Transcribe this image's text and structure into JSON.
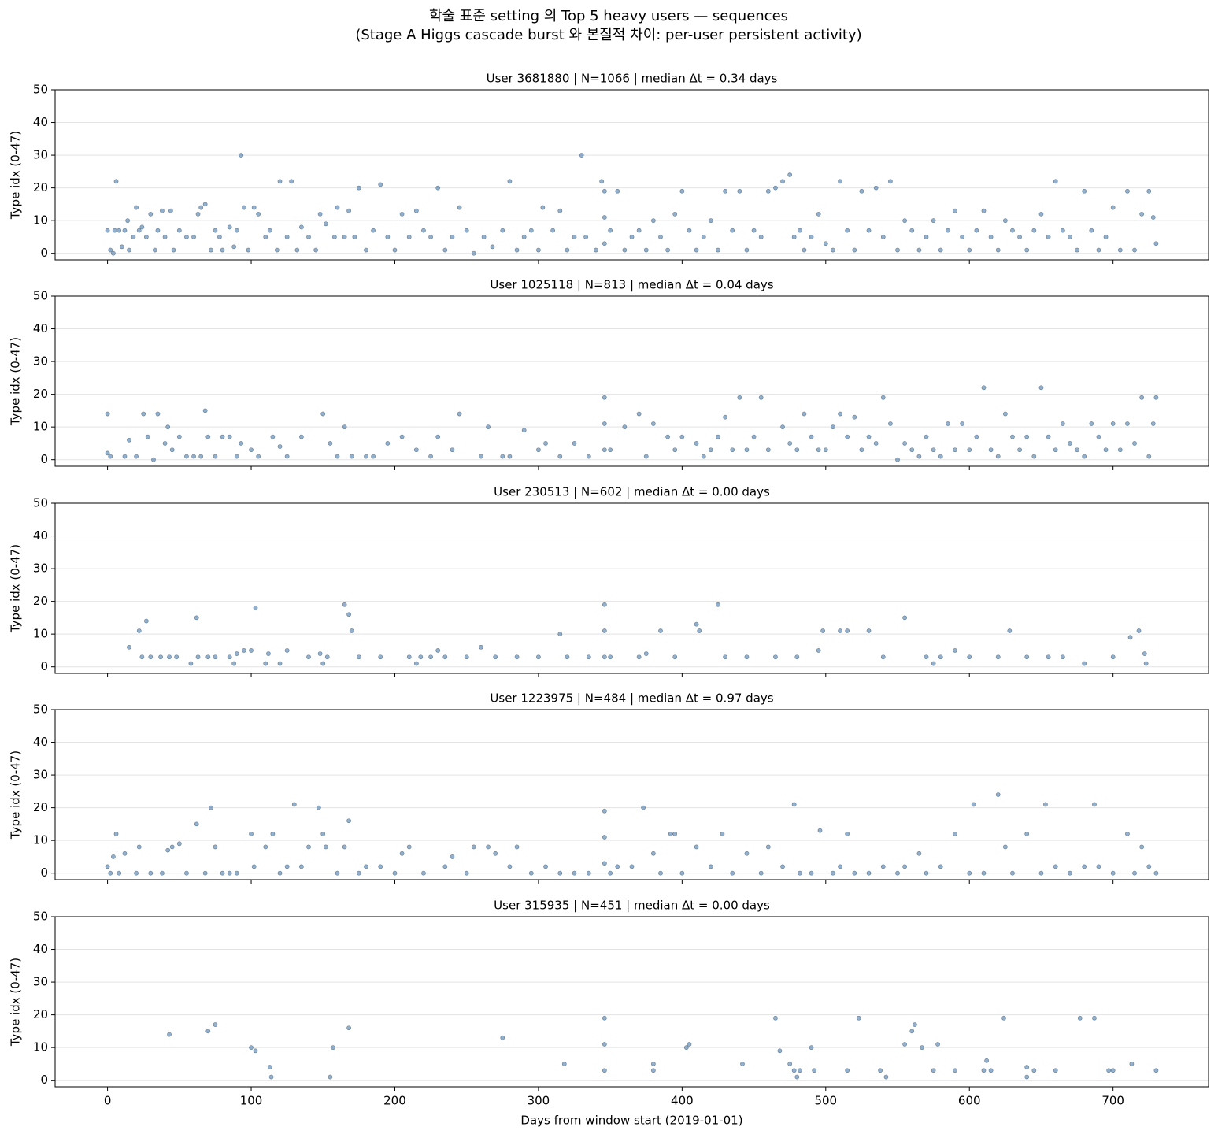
{
  "figure": {
    "title": "학술 표준 setting 의 Top 5 heavy users — sequences",
    "subtitle": "(Stage A Higgs cascade burst 와 본질적 차이: per-user persistent activity)"
  },
  "chart_data": [
    {
      "type": "scatter",
      "title": "User 3681880 | N=1066 | median Δt = 0.34 days",
      "ylabel": "Type idx (0-47)",
      "color": "#4a7aa8",
      "grid": true,
      "xlim": [
        -36.5,
        766.5
      ],
      "ylim": [
        -2,
        50
      ],
      "yticks": [
        0,
        10,
        20,
        30,
        40,
        50
      ],
      "x": [
        0,
        2,
        4,
        5,
        6,
        8,
        10,
        12,
        14,
        15,
        18,
        20,
        22,
        24,
        27,
        30,
        33,
        35,
        38,
        40,
        44,
        46,
        50,
        55,
        60,
        63,
        65,
        68,
        72,
        75,
        78,
        80,
        85,
        88,
        90,
        93,
        95,
        98,
        102,
        105,
        110,
        113,
        118,
        120,
        125,
        128,
        132,
        135,
        140,
        145,
        148,
        152,
        158,
        160,
        165,
        168,
        172,
        175,
        180,
        185,
        190,
        195,
        200,
        205,
        210,
        215,
        220,
        225,
        230,
        235,
        240,
        245,
        250,
        255,
        262,
        268,
        275,
        280,
        285,
        290,
        295,
        300,
        303,
        310,
        315,
        320,
        325,
        330,
        333,
        340,
        344,
        346,
        346,
        346,
        350,
        355,
        360,
        365,
        370,
        375,
        380,
        385,
        390,
        395,
        400,
        405,
        410,
        415,
        420,
        425,
        430,
        435,
        440,
        445,
        450,
        455,
        460,
        465,
        470,
        475,
        478,
        482,
        485,
        490,
        495,
        500,
        505,
        510,
        515,
        520,
        525,
        530,
        535,
        540,
        545,
        550,
        555,
        560,
        565,
        570,
        575,
        580,
        585,
        590,
        595,
        600,
        605,
        610,
        615,
        620,
        625,
        630,
        635,
        640,
        645,
        650,
        655,
        660,
        665,
        670,
        675,
        680,
        685,
        690,
        695,
        700,
        705,
        710,
        715,
        720,
        725,
        728,
        730
      ],
      "values": [
        7,
        1,
        0,
        7,
        22,
        7,
        2,
        7,
        10,
        1,
        5,
        14,
        7,
        8,
        5,
        12,
        1,
        7,
        13,
        5,
        13,
        1,
        7,
        5,
        5,
        12,
        14,
        15,
        1,
        7,
        5,
        1,
        8,
        2,
        7,
        30,
        14,
        1,
        14,
        12,
        5,
        7,
        1,
        22,
        5,
        22,
        1,
        8,
        5,
        1,
        12,
        9,
        5,
        14,
        5,
        13,
        5,
        20,
        1,
        7,
        21,
        5,
        1,
        12,
        5,
        13,
        7,
        5,
        20,
        1,
        5,
        14,
        7,
        0,
        5,
        2,
        7,
        22,
        1,
        5,
        7,
        1,
        14,
        7,
        13,
        1,
        5,
        30,
        5,
        1,
        22,
        19,
        11,
        3,
        7,
        19,
        1,
        5,
        7,
        1,
        10,
        5,
        1,
        12,
        19,
        7,
        1,
        5,
        10,
        1,
        19,
        7,
        19,
        1,
        7,
        5,
        19,
        20,
        22,
        24,
        5,
        7,
        1,
        5,
        12,
        3,
        1,
        22,
        7,
        1,
        19,
        7,
        20,
        5,
        22,
        1,
        10,
        7,
        1,
        5,
        10,
        1,
        7,
        13,
        5,
        1,
        7,
        13,
        5,
        1,
        10,
        7,
        5,
        1,
        7,
        12,
        5,
        22,
        7,
        5,
        1,
        19,
        7,
        1,
        5,
        14,
        1,
        19,
        1,
        12,
        19,
        11,
        3
      ]
    },
    {
      "type": "scatter",
      "title": "User 1025118 | N=813 | median Δt = 0.04 days",
      "ylabel": "Type idx (0-47)",
      "color": "#4a7aa8",
      "grid": true,
      "xlim": [
        -36.5,
        766.5
      ],
      "ylim": [
        -2,
        50
      ],
      "yticks": [
        0,
        10,
        20,
        30,
        40,
        50
      ],
      "x": [
        0,
        0,
        2,
        12,
        15,
        20,
        25,
        28,
        32,
        35,
        40,
        42,
        45,
        50,
        55,
        60,
        65,
        68,
        70,
        75,
        80,
        85,
        90,
        93,
        100,
        105,
        115,
        120,
        125,
        135,
        150,
        155,
        160,
        165,
        170,
        180,
        185,
        195,
        205,
        215,
        225,
        230,
        240,
        245,
        260,
        265,
        275,
        280,
        290,
        300,
        305,
        315,
        325,
        335,
        346,
        346,
        346,
        350,
        360,
        370,
        375,
        380,
        390,
        395,
        400,
        410,
        415,
        420,
        425,
        430,
        435,
        440,
        445,
        450,
        455,
        460,
        470,
        475,
        480,
        485,
        490,
        495,
        500,
        505,
        510,
        515,
        520,
        525,
        530,
        535,
        540,
        545,
        550,
        555,
        560,
        565,
        570,
        575,
        580,
        585,
        590,
        595,
        600,
        605,
        610,
        615,
        620,
        625,
        630,
        635,
        640,
        645,
        650,
        655,
        660,
        665,
        670,
        675,
        680,
        685,
        690,
        695,
        700,
        705,
        710,
        715,
        720,
        725,
        728,
        730
      ],
      "values": [
        14,
        2,
        1,
        1,
        6,
        1,
        14,
        7,
        0,
        14,
        5,
        10,
        3,
        7,
        1,
        1,
        1,
        15,
        7,
        1,
        7,
        7,
        1,
        5,
        3,
        1,
        7,
        4,
        1,
        7,
        14,
        5,
        1,
        10,
        1,
        1,
        1,
        5,
        7,
        3,
        1,
        7,
        3,
        14,
        1,
        10,
        1,
        1,
        9,
        3,
        5,
        1,
        5,
        1,
        19,
        11,
        3,
        3,
        10,
        14,
        1,
        11,
        7,
        3,
        7,
        5,
        1,
        3,
        7,
        13,
        3,
        19,
        3,
        7,
        19,
        3,
        10,
        5,
        3,
        14,
        7,
        3,
        3,
        10,
        14,
        7,
        13,
        3,
        7,
        5,
        19,
        11,
        0,
        5,
        3,
        1,
        7,
        3,
        1,
        11,
        3,
        11,
        3,
        7,
        22,
        3,
        1,
        14,
        7,
        3,
        7,
        1,
        22,
        7,
        3,
        11,
        5,
        3,
        1,
        11,
        7,
        3,
        11,
        3,
        11,
        5,
        19,
        1,
        11,
        19
      ]
    },
    {
      "type": "scatter",
      "title": "User 230513 | N=602 | median Δt = 0.00 days",
      "ylabel": "Type idx (0-47)",
      "color": "#4a7aa8",
      "grid": true,
      "xlim": [
        -36.5,
        766.5
      ],
      "ylim": [
        -2,
        50
      ],
      "yticks": [
        0,
        10,
        20,
        30,
        40,
        50
      ],
      "x": [
        15,
        22,
        24,
        27,
        30,
        37,
        43,
        48,
        58,
        62,
        63,
        70,
        75,
        85,
        88,
        90,
        95,
        100,
        103,
        110,
        112,
        120,
        125,
        140,
        148,
        150,
        153,
        165,
        168,
        170,
        175,
        190,
        210,
        215,
        218,
        225,
        230,
        235,
        250,
        260,
        270,
        285,
        300,
        315,
        320,
        335,
        346,
        346,
        346,
        350,
        370,
        375,
        385,
        395,
        410,
        412,
        425,
        430,
        445,
        465,
        480,
        495,
        498,
        510,
        515,
        530,
        540,
        555,
        570,
        575,
        580,
        590,
        600,
        620,
        628,
        640,
        655,
        665,
        680,
        700,
        712,
        718,
        722,
        723
      ],
      "values": [
        6,
        11,
        3,
        14,
        3,
        3,
        3,
        3,
        1,
        15,
        3,
        3,
        3,
        3,
        1,
        4,
        5,
        5,
        18,
        1,
        4,
        1,
        5,
        3,
        4,
        1,
        3,
        19,
        16,
        11,
        3,
        3,
        3,
        1,
        3,
        3,
        5,
        3,
        3,
        6,
        3,
        3,
        3,
        10,
        3,
        3,
        19,
        11,
        3,
        3,
        3,
        4,
        11,
        3,
        13,
        11,
        19,
        3,
        3,
        3,
        3,
        5,
        11,
        11,
        11,
        11,
        3,
        15,
        3,
        1,
        3,
        5,
        3,
        3,
        11,
        3,
        3,
        3,
        1,
        3,
        9,
        11,
        4,
        1
      ]
    },
    {
      "type": "scatter",
      "title": "User 1223975 | N=484 | median Δt = 0.97 days",
      "ylabel": "Type idx (0-47)",
      "color": "#4a7aa8",
      "grid": true,
      "xlim": [
        -36.5,
        766.5
      ],
      "ylim": [
        -2,
        50
      ],
      "yticks": [
        0,
        10,
        20,
        30,
        40,
        50
      ],
      "x": [
        0,
        2,
        4,
        6,
        8,
        12,
        20,
        22,
        30,
        38,
        42,
        45,
        50,
        55,
        62,
        68,
        72,
        75,
        80,
        85,
        90,
        100,
        102,
        110,
        115,
        120,
        125,
        130,
        135,
        140,
        147,
        150,
        152,
        160,
        165,
        168,
        175,
        180,
        190,
        200,
        205,
        210,
        220,
        235,
        240,
        250,
        255,
        265,
        270,
        280,
        285,
        295,
        305,
        315,
        325,
        335,
        346,
        346,
        346,
        350,
        355,
        365,
        373,
        380,
        385,
        392,
        395,
        400,
        410,
        420,
        428,
        435,
        445,
        455,
        460,
        470,
        478,
        482,
        490,
        496,
        505,
        510,
        515,
        520,
        530,
        540,
        550,
        555,
        565,
        570,
        580,
        590,
        600,
        603,
        610,
        620,
        625,
        630,
        640,
        650,
        653,
        660,
        670,
        680,
        687,
        690,
        700,
        710,
        715,
        720,
        725,
        730
      ],
      "values": [
        2,
        0,
        5,
        12,
        0,
        6,
        0,
        8,
        0,
        0,
        7,
        8,
        9,
        0,
        15,
        0,
        20,
        8,
        0,
        0,
        0,
        12,
        2,
        8,
        12,
        0,
        2,
        21,
        2,
        8,
        20,
        12,
        8,
        0,
        8,
        16,
        0,
        2,
        2,
        0,
        6,
        8,
        0,
        2,
        5,
        0,
        8,
        8,
        6,
        2,
        8,
        0,
        2,
        0,
        0,
        0,
        19,
        11,
        3,
        0,
        2,
        2,
        20,
        6,
        0,
        12,
        12,
        0,
        8,
        2,
        12,
        0,
        6,
        0,
        8,
        2,
        21,
        0,
        0,
        13,
        0,
        2,
        12,
        0,
        0,
        2,
        0,
        2,
        6,
        0,
        2,
        12,
        0,
        21,
        0,
        24,
        8,
        0,
        12,
        0,
        21,
        2,
        0,
        2,
        21,
        2,
        0,
        12,
        0,
        8,
        2,
        0
      ]
    },
    {
      "type": "scatter",
      "title": "User 315935 | N=451 | median Δt = 0.00 days",
      "ylabel": "Type idx (0-47)",
      "xlabel": "Days from window start (2019-01-01)",
      "color": "#4a7aa8",
      "grid": true,
      "xlim": [
        -36.5,
        766.5
      ],
      "ylim": [
        -2,
        50
      ],
      "yticks": [
        0,
        10,
        20,
        30,
        40,
        50
      ],
      "xticks": [
        0,
        100,
        200,
        300,
        400,
        500,
        600,
        700
      ],
      "x": [
        43,
        70,
        75,
        100,
        103,
        113,
        114,
        155,
        157,
        168,
        275,
        318,
        346,
        346,
        346,
        380,
        380,
        403,
        405,
        442,
        465,
        468,
        475,
        478,
        480,
        482,
        490,
        492,
        515,
        523,
        538,
        542,
        555,
        560,
        562,
        567,
        575,
        578,
        590,
        610,
        612,
        615,
        624,
        640,
        640,
        645,
        660,
        677,
        687,
        697,
        700,
        713,
        730
      ],
      "values": [
        14,
        15,
        17,
        10,
        9,
        4,
        1,
        1,
        10,
        16,
        13,
        5,
        19,
        11,
        3,
        5,
        3,
        10,
        11,
        5,
        19,
        9,
        5,
        3,
        1,
        3,
        10,
        3,
        3,
        19,
        3,
        1,
        11,
        15,
        17,
        10,
        3,
        11,
        3,
        3,
        6,
        3,
        19,
        4,
        1,
        3,
        3,
        19,
        19,
        3,
        3,
        5,
        3
      ]
    }
  ]
}
